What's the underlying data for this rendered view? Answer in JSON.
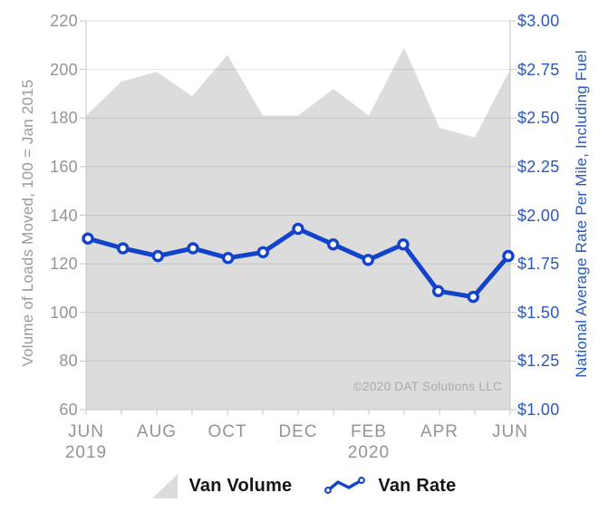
{
  "chart_data": {
    "type": "combo",
    "categories": [
      "JUN 2019",
      "JUL 2019",
      "AUG 2019",
      "SEP 2019",
      "OCT 2019",
      "NOV 2019",
      "DEC 2019",
      "JAN 2020",
      "FEB 2020",
      "MAR 2020",
      "APR 2020",
      "MAY 2020",
      "JUN 2020"
    ],
    "series": [
      {
        "name": "Van Volume",
        "type": "area",
        "axis": "left",
        "color": "#dcdcdc",
        "values": [
          181,
          195,
          199,
          189,
          206,
          181,
          181,
          192,
          181,
          209,
          176,
          172,
          200
        ]
      },
      {
        "name": "Van Rate",
        "type": "line",
        "axis": "right",
        "color": "#1343cb",
        "marker": "open-circle",
        "values": [
          1.88,
          1.83,
          1.79,
          1.83,
          1.78,
          1.81,
          1.93,
          1.85,
          1.77,
          1.85,
          1.61,
          1.58,
          1.79
        ]
      }
    ],
    "left_axis": {
      "title": "Volume of Loads Moved, 100 = Jan 2015",
      "min": 60,
      "max": 220,
      "tick_step": 20,
      "tick_labels": [
        "220",
        "200",
        "180",
        "160",
        "140",
        "120",
        "100",
        "80",
        "60"
      ],
      "label_color": "#949494"
    },
    "right_axis": {
      "title": "National Average Rate Per Mile, Including Fuel",
      "min": 1.0,
      "max": 3.0,
      "tick_step": 0.25,
      "tick_labels": [
        "$3.00",
        "$2.75",
        "$2.50",
        "$2.25",
        "$2.00",
        "$1.75",
        "$1.50",
        "$1.25",
        "$1.00"
      ],
      "label_color": "#2a58bd"
    },
    "x_axis": {
      "label_color": "#949494",
      "tick_labels": [
        {
          "index": 0,
          "line1": "JUN",
          "line2": "2019"
        },
        {
          "index": 2,
          "line1": "AUG"
        },
        {
          "index": 4,
          "line1": "OCT"
        },
        {
          "index": 6,
          "line1": "DEC"
        },
        {
          "index": 8,
          "line1": "FEB",
          "line2": "2020"
        },
        {
          "index": 10,
          "line1": "APR"
        },
        {
          "index": 12,
          "line1": "JUN"
        }
      ]
    },
    "grid": true,
    "grid_color": "rgba(125,125,125,0.22)",
    "axis_line_color": "#c6c6c6",
    "watermark": "©2020 DAT Solutions LLC",
    "legend_position": "bottom"
  },
  "legend": {
    "items": [
      {
        "label": "Van Volume",
        "swatch": "area-triangle",
        "color": "#dcdcdc"
      },
      {
        "label": "Van Rate",
        "swatch": "line-with-markers",
        "color": "#1343cb"
      }
    ]
  }
}
